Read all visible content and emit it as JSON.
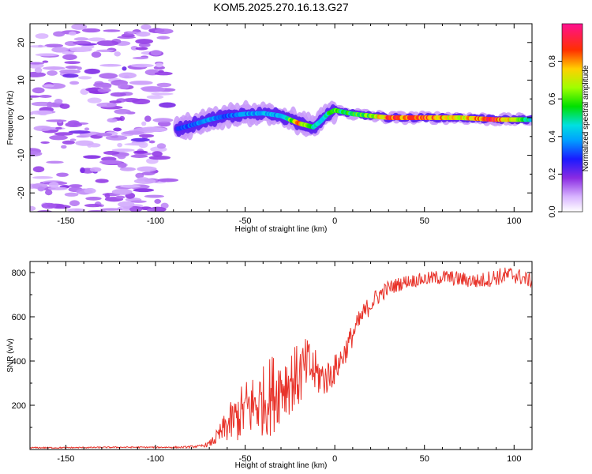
{
  "title": "KOM5.2025.270.16.13.G27",
  "chart_data": [
    {
      "type": "heatmap",
      "xlabel": "Height of straight line (km)",
      "ylabel": "Frequency (Hz)",
      "xlim": [
        -170,
        110
      ],
      "ylim": [
        -25,
        25
      ],
      "xticks": [
        -150,
        -100,
        -50,
        0,
        50,
        100
      ],
      "xtick_labels": [
        "-150",
        "-100",
        "-50",
        "0",
        "50",
        "100"
      ],
      "yticks": [
        -20,
        -10,
        0,
        10,
        20
      ],
      "ytick_labels": [
        "-20",
        "-10",
        "0",
        "10",
        "20"
      ],
      "colorbar": {
        "label": "Normalized spectral amplitude",
        "range": [
          0,
          1
        ],
        "ticks": [
          0.0,
          0.2,
          0.4,
          0.6,
          0.8
        ],
        "tick_labels": [
          "0.0",
          "0.2",
          "0.4",
          "0.6",
          "0.8"
        ]
      },
      "ridge": {
        "x": [
          -88,
          -80,
          -70,
          -60,
          -50,
          -40,
          -30,
          -20,
          -12,
          -8,
          -4,
          0,
          5,
          10,
          20,
          30,
          50,
          70,
          90,
          110
        ],
        "freq": [
          -3,
          -2,
          -0.5,
          0.5,
          1,
          1.2,
          0.5,
          -1.5,
          -2.5,
          -1,
          1,
          2,
          1.5,
          1,
          0.5,
          0,
          0,
          0,
          -0.5,
          -0.5
        ],
        "amplitude": [
          0.3,
          0.35,
          0.4,
          0.35,
          0.4,
          0.45,
          0.4,
          0.85,
          0.5,
          0.45,
          0.55,
          0.65,
          0.55,
          0.6,
          0.65,
          0.9,
          0.9,
          0.75,
          0.95,
          0.45
        ]
      },
      "noise_region_x": [
        -170,
        -93
      ]
    },
    {
      "type": "line",
      "xlabel": "Height of straight line (km)",
      "ylabel": "SNR (v/v)",
      "xlim": [
        -170,
        110
      ],
      "ylim": [
        0,
        850
      ],
      "xticks": [
        -150,
        -100,
        -50,
        0,
        50,
        100
      ],
      "xtick_labels": [
        "-150",
        "-100",
        "-50",
        "0",
        "50",
        "100"
      ],
      "yticks": [
        200,
        400,
        600,
        800
      ],
      "ytick_labels": [
        "200",
        "400",
        "600",
        "800"
      ],
      "color": "#e8332a",
      "series": [
        {
          "name": "SNR",
          "x": [
            -170,
            -150,
            -120,
            -100,
            -85,
            -75,
            -70,
            -65,
            -60,
            -55,
            -50,
            -45,
            -40,
            -35,
            -30,
            -25,
            -20,
            -15,
            -10,
            -5,
            0,
            5,
            10,
            15,
            20,
            25,
            30,
            40,
            50,
            60,
            70,
            80,
            90,
            100,
            110
          ],
          "mean": [
            8,
            8,
            10,
            10,
            10,
            15,
            25,
            60,
            110,
            140,
            180,
            200,
            220,
            250,
            290,
            310,
            330,
            380,
            340,
            320,
            360,
            430,
            520,
            600,
            660,
            700,
            730,
            760,
            770,
            780,
            770,
            760,
            780,
            790,
            760
          ],
          "noise": [
            3,
            3,
            3,
            3,
            4,
            6,
            12,
            40,
            80,
            110,
            140,
            150,
            160,
            190,
            160,
            150,
            150,
            130,
            100,
            80,
            70,
            60,
            55,
            50,
            45,
            40,
            35,
            30,
            30,
            35,
            35,
            35,
            40,
            40,
            30
          ]
        }
      ]
    }
  ]
}
